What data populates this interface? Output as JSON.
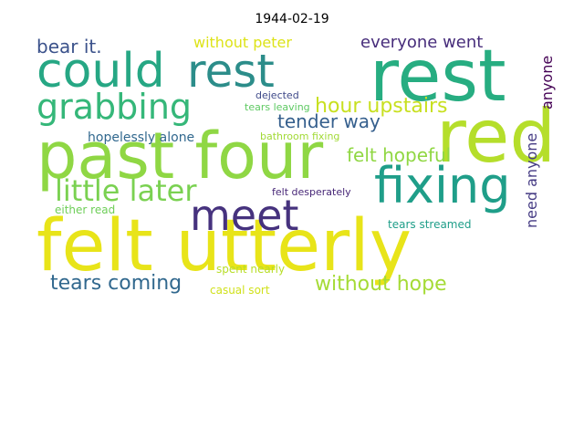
{
  "chart_data": {
    "type": "wordcloud",
    "title": "1944-02-19",
    "words": [
      {
        "text": "could",
        "color": "#26a784"
      },
      {
        "text": "rest",
        "color": "#2c8d8a"
      },
      {
        "text": "rest",
        "color": "#27ad81"
      },
      {
        "text": "grabbing",
        "color": "#35b779"
      },
      {
        "text": "past four",
        "color": "#8fd744"
      },
      {
        "text": "red",
        "color": "#b5de2b"
      },
      {
        "text": "fixing",
        "color": "#1f9e89"
      },
      {
        "text": "felt utterly",
        "color": "#e8e419"
      },
      {
        "text": "meet",
        "color": "#46327e"
      },
      {
        "text": "little later",
        "color": "#7ad151"
      },
      {
        "text": "bear it.",
        "color": "#3b528b"
      },
      {
        "text": "without peter",
        "color": "#dde318"
      },
      {
        "text": "everyone went",
        "color": "#472d7b"
      },
      {
        "text": "hour upstairs",
        "color": "#c8e020"
      },
      {
        "text": "tender way",
        "color": "#355f8d"
      },
      {
        "text": "anyone",
        "color": "#440154"
      },
      {
        "text": "need anyone",
        "color": "#443a83"
      },
      {
        "text": "felt hopeful",
        "color": "#90d743"
      },
      {
        "text": "dejected",
        "color": "#3e4989"
      },
      {
        "text": "tears leaving",
        "color": "#5ec962"
      },
      {
        "text": "hopelessly alone",
        "color": "#31688e"
      },
      {
        "text": "bathroom fixing",
        "color": "#a2da37"
      },
      {
        "text": "felt desperately",
        "color": "#482878"
      },
      {
        "text": "either read",
        "color": "#6ece58"
      },
      {
        "text": "tears coming",
        "color": "#31688e"
      },
      {
        "text": "without hope",
        "color": "#a5db36"
      },
      {
        "text": "casual sort",
        "color": "#d0e11c"
      },
      {
        "text": "spent nearly",
        "color": "#b8de29"
      },
      {
        "text": "tears streamed",
        "color": "#1f9e89"
      }
    ]
  }
}
